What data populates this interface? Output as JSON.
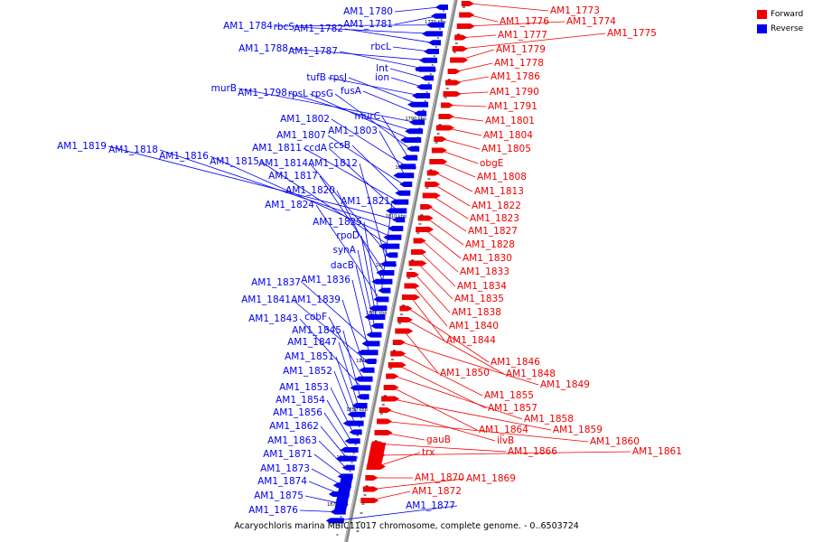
{
  "caption": "Acaryochloris marina MBIC11017 chromosome, complete genome. - 0..6503724",
  "legend": [
    {
      "label": "Forward",
      "color": "#ee0000"
    },
    {
      "label": "Reverse",
      "color": "#0000ee"
    }
  ],
  "ticks": [
    "1770 kbp",
    "1780 kbp",
    "1790 kbp",
    "1800 kbp",
    "1810 kbp",
    "1820 kbp",
    "1830 kbp",
    "1840 kbp",
    "1850 kbp",
    "1860 kbp",
    "1870 kbp"
  ],
  "reverse_labels": [
    "AM1_1780",
    "AM1_1781",
    "AM1_1784",
    "rbcS",
    "AM1_1782",
    "rbcL",
    "AM1_1788",
    "AM1_1787",
    "lnt",
    "ion",
    "tufB",
    "rpsJ",
    "fusA",
    "murB",
    "AM1_1798",
    "rpsL",
    "rpsG",
    "murC",
    "AM1_1802",
    "AM1_1803",
    "AM1_1807",
    "ccsB",
    "AM1_1811",
    "ccdA",
    "AM1_1819",
    "AM1_1818",
    "AM1_1816",
    "AM1_1815",
    "AM1_1814",
    "AM1_1812",
    "AM1_1817",
    "AM1_1820",
    "AM1_1821",
    "AM1_1824",
    "AM1_1825",
    "rpoD",
    "synA",
    "dacB",
    "AM1_1837",
    "AM1_1836",
    "AM1_1841",
    "AM1_1839",
    "cobF",
    "AM1_1843",
    "AM1_1845",
    "AM1_1847",
    "AM1_1851",
    "AM1_1852",
    "AM1_1853",
    "AM1_1854",
    "AM1_1856",
    "AM1_1862",
    "AM1_1863",
    "AM1_1871",
    "AM1_1873",
    "AM1_1874",
    "AM1_1875",
    "AM1_1876",
    "AM1_1877"
  ],
  "forward_labels": [
    "AM1_1773",
    "AM1_1776",
    "AM1_1774",
    "AM1_1777",
    "AM1_1775",
    "AM1_1779",
    "AM1_1778",
    "AM1_1786",
    "AM1_1790",
    "AM1_1791",
    "AM1_1801",
    "AM1_1804",
    "AM1_1805",
    "obgE",
    "AM1_1808",
    "AM1_1813",
    "AM1_1822",
    "AM1_1823",
    "AM1_1827",
    "AM1_1828",
    "AM1_1830",
    "AM1_1833",
    "AM1_1834",
    "AM1_1835",
    "AM1_1838",
    "AM1_1840",
    "AM1_1844",
    "AM1_1846",
    "AM1_1848",
    "AM1_1850",
    "AM1_1849",
    "AM1_1855",
    "AM1_1857",
    "AM1_1858",
    "AM1_1864",
    "AM1_1859",
    "ilvB",
    "AM1_1860",
    "gauB",
    "AM1_1866",
    "AM1_1861",
    "trx",
    "AM1_1870",
    "AM1_1869",
    "AM1_1872"
  ]
}
